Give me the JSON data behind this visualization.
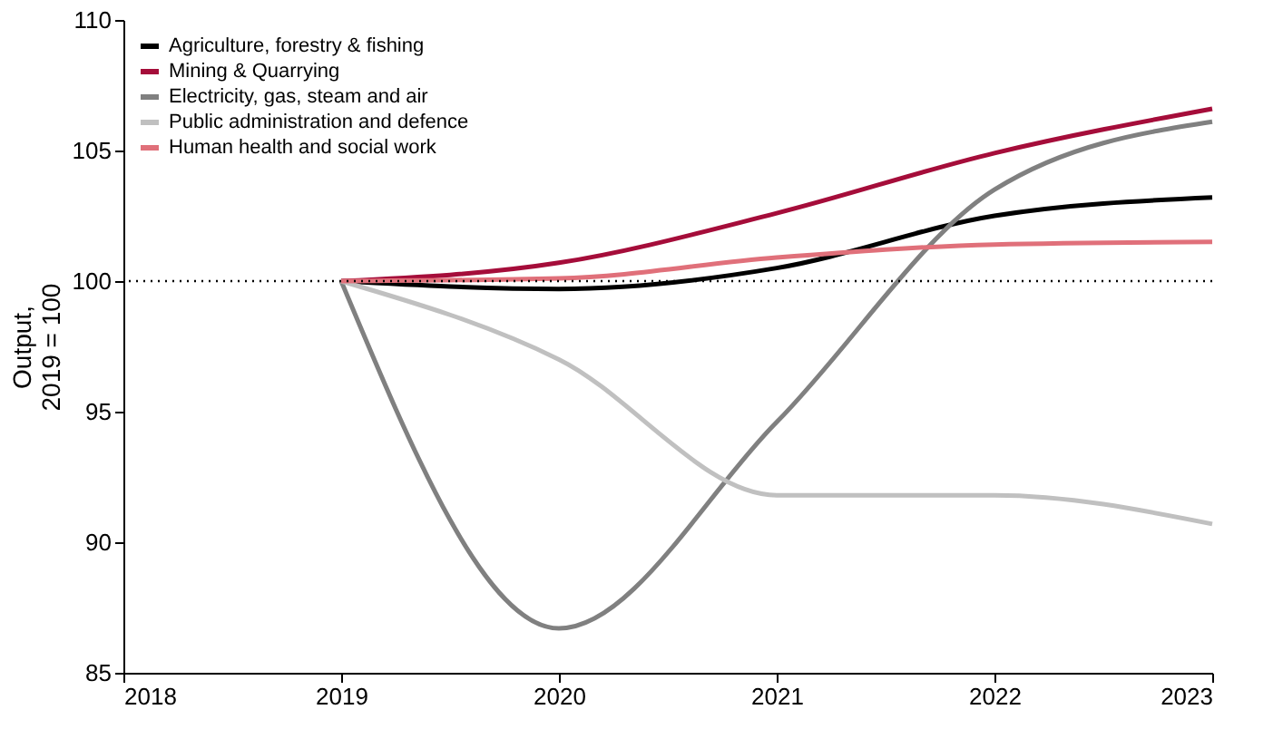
{
  "chart_data": {
    "type": "line",
    "ylabel": "Output,\n2019 = 100",
    "x": [
      2019,
      2020,
      2021,
      2022,
      2023
    ],
    "series": [
      {
        "name": "Agriculture, forestry & fishing",
        "color": "#000000",
        "values": [
          100,
          99.7,
          100.5,
          102.5,
          103.2
        ]
      },
      {
        "name": "Mining & Quarrying",
        "color": "#a50d3a",
        "values": [
          100,
          100.7,
          102.6,
          104.9,
          106.6
        ]
      },
      {
        "name": "Electricity, gas, steam and air",
        "color": "#808080",
        "values": [
          100,
          86.7,
          94.6,
          103.5,
          106.1
        ]
      },
      {
        "name": "Public administration and defence",
        "color": "#c0c0c0",
        "values": [
          100,
          97.0,
          91.8,
          91.8,
          90.7
        ]
      },
      {
        "name": "Human health and social work",
        "color": "#e0707a",
        "values": [
          100,
          100.1,
          100.9,
          101.4,
          101.5
        ]
      }
    ],
    "xlim": [
      2018,
      2023
    ],
    "xticks": [
      2018,
      2019,
      2020,
      2021,
      2022,
      2023
    ],
    "ylim": [
      85,
      110
    ],
    "yticks": [
      85,
      90,
      95,
      100,
      105,
      110
    ],
    "ref_lines": [
      {
        "axis": "y",
        "value": 100,
        "color": "#000000",
        "line_style": "dotted"
      }
    ],
    "grid": false,
    "legend": "top left",
    "marker": "none",
    "line_style": "solid"
  }
}
